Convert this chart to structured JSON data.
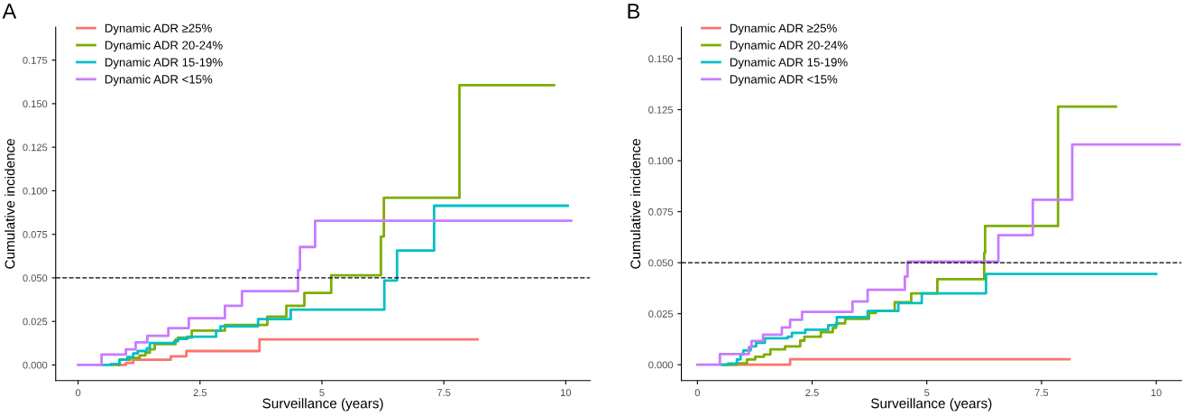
{
  "chart_data": [
    {
      "type": "step",
      "title": "A",
      "xlabel": "Surveillance (years)",
      "ylabel": "Cumulative incidence",
      "xlim": [
        -0.46,
        10.5
      ],
      "ylim": [
        -0.009,
        0.194
      ],
      "xticks": [
        0,
        2.5,
        5,
        7.5,
        10
      ],
      "yticks": [
        {
          "value": 0,
          "label": "0.000"
        },
        {
          "value": 0.025,
          "label": "0.025"
        },
        {
          "value": 0.05,
          "label": "0.050"
        },
        {
          "value": 0.075,
          "label": "0.075"
        },
        {
          "value": 0.1,
          "label": "0.100"
        },
        {
          "value": 0.125,
          "label": "0.125"
        },
        {
          "value": 0.15,
          "label": "0.150"
        },
        {
          "value": 0.175,
          "label": "0.175"
        }
      ],
      "grid": false,
      "legend": "top left",
      "line_style": "solid",
      "ref_lines": [
        {
          "axis": "y",
          "value": 0.05,
          "color": "#000000",
          "line_style": "dashed"
        }
      ],
      "series": [
        {
          "name": "Dynamic ADR ≥25%",
          "color": "#f8766d",
          "x": [
            0.83,
            0.98,
            1.13,
            1.9,
            2.22,
            3.72,
            8.19
          ],
          "values": [
            0,
            0.0012,
            0.003,
            0.005,
            0.008,
            0.0147,
            0.0147
          ]
        },
        {
          "name": "Dynamic ADR 20-24%",
          "color": "#7cae00",
          "x": [
            0.67,
            0.85,
            1.07,
            1.26,
            1.38,
            1.47,
            1.57,
            2.0,
            2.05,
            2.33,
            3.01,
            3.88,
            4.27,
            4.64,
            5.19,
            6.21,
            6.27,
            7.82,
            9.76
          ],
          "values": [
            0,
            0.003,
            0.004,
            0.0055,
            0.007,
            0.009,
            0.012,
            0.0147,
            0.0157,
            0.0197,
            0.023,
            0.0278,
            0.034,
            0.0414,
            0.0515,
            0.0737,
            0.096,
            0.1606,
            0.1606
          ]
        },
        {
          "name": "Dynamic ADR 15-19%",
          "color": "#00bfc4",
          "x": [
            0.48,
            0.67,
            0.85,
            1.01,
            1.13,
            1.22,
            1.41,
            1.47,
            1.97,
            2.05,
            2.24,
            2.83,
            2.92,
            3.69,
            4.36,
            6.28,
            6.54,
            7.3,
            10.04
          ],
          "values": [
            0,
            0.0006,
            0.003,
            0.0045,
            0.0066,
            0.008,
            0.0096,
            0.0126,
            0.0136,
            0.015,
            0.0162,
            0.0197,
            0.0222,
            0.0263,
            0.0318,
            0.0485,
            0.0657,
            0.0914,
            0.0914
          ]
        },
        {
          "name": "Dynamic ADR <15%",
          "color": "#c77cff",
          "x": [
            0,
            0.48,
            0.98,
            1.18,
            1.42,
            1.85,
            2.27,
            3.01,
            3.36,
            4.51,
            4.55,
            4.86,
            10.11
          ],
          "values": [
            0,
            0.006,
            0.009,
            0.013,
            0.0167,
            0.0212,
            0.0268,
            0.034,
            0.0424,
            0.0545,
            0.0677,
            0.0828,
            0.0828
          ]
        }
      ]
    },
    {
      "type": "step",
      "title": "B",
      "xlabel": "Surveillance (years)",
      "ylabel": "Cumulative incidence",
      "xlim": [
        -0.35,
        10.55
      ],
      "ylim": [
        -0.0078,
        0.1655
      ],
      "xticks": [
        0,
        2.5,
        5,
        7.5,
        10
      ],
      "yticks": [
        {
          "value": 0,
          "label": "0.000"
        },
        {
          "value": 0.025,
          "label": "0.025"
        },
        {
          "value": 0.05,
          "label": "0.050"
        },
        {
          "value": 0.075,
          "label": "0.075"
        },
        {
          "value": 0.1,
          "label": "0.100"
        },
        {
          "value": 0.125,
          "label": "0.125"
        },
        {
          "value": 0.15,
          "label": "0.150"
        }
      ],
      "grid": false,
      "legend": "top left",
      "line_style": "solid",
      "ref_lines": [
        {
          "axis": "y",
          "value": 0.05,
          "color": "#000000",
          "line_style": "dashed"
        }
      ],
      "series": [
        {
          "name": "Dynamic ADR ≥25%",
          "color": "#f8766d",
          "x": [
            0.6,
            2.02,
            8.11
          ],
          "values": [
            0,
            0.0027,
            0.0027
          ]
        },
        {
          "name": "Dynamic ADR 20-24%",
          "color": "#7cae00",
          "x": [
            0.53,
            0.86,
            1.08,
            1.26,
            1.45,
            1.59,
            1.91,
            2.24,
            2.33,
            2.69,
            2.95,
            3.02,
            3.22,
            3.74,
            3.89,
            4.3,
            4.66,
            5.23,
            6.25,
            6.27,
            7.86,
            9.12
          ],
          "values": [
            0,
            0.0007,
            0.0026,
            0.0039,
            0.005,
            0.0075,
            0.009,
            0.0118,
            0.0137,
            0.016,
            0.018,
            0.0203,
            0.0225,
            0.0254,
            0.0263,
            0.0306,
            0.035,
            0.0419,
            0.0548,
            0.068,
            0.1265,
            0.1265
          ]
        },
        {
          "name": "Dynamic ADR 15-19%",
          "color": "#00bfc4",
          "x": [
            0.53,
            0.67,
            0.86,
            0.94,
            1.0,
            1.16,
            1.28,
            1.47,
            1.97,
            2.06,
            2.35,
            2.85,
            3.04,
            3.71,
            4.38,
            4.89,
            6.29,
            10.0
          ],
          "values": [
            0,
            0.0006,
            0.0026,
            0.005,
            0.007,
            0.009,
            0.0107,
            0.013,
            0.0137,
            0.0156,
            0.0172,
            0.0194,
            0.0233,
            0.0263,
            0.0302,
            0.035,
            0.0445,
            0.0445
          ]
        },
        {
          "name": "Dynamic ADR <15%",
          "color": "#c77cff",
          "x": [
            0,
            0.49,
            1.12,
            1.18,
            1.43,
            1.84,
            2.02,
            2.28,
            3.38,
            3.71,
            4.52,
            4.58,
            6.56,
            7.31,
            8.17,
            10.51
          ],
          "values": [
            0,
            0.0052,
            0.0086,
            0.0116,
            0.0147,
            0.0183,
            0.022,
            0.0259,
            0.031,
            0.0367,
            0.0432,
            0.0505,
            0.0635,
            0.0808,
            0.1079,
            0.1079
          ]
        }
      ]
    }
  ]
}
